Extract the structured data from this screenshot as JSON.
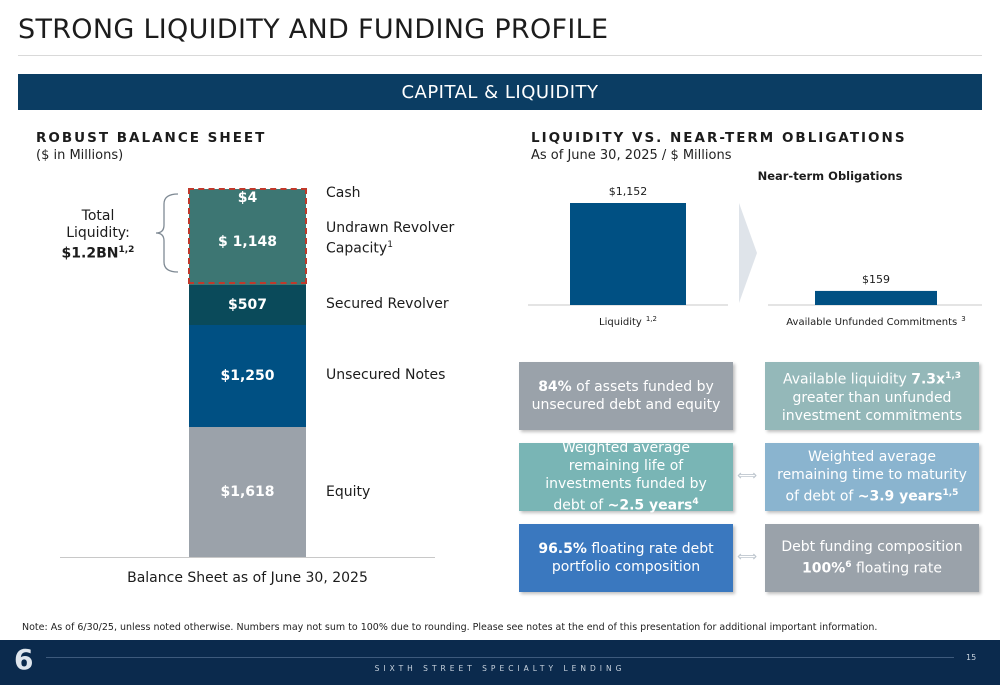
{
  "header": {
    "title": "STRONG LIQUIDITY AND FUNDING PROFILE",
    "banner": "CAPITAL & LIQUIDITY"
  },
  "left": {
    "title": "ROBUST BALANCE SHEET",
    "subtitle": "($ in Millions)",
    "total_line1": "Total",
    "total_line2": "Liquidity:",
    "total_value": "$1.2BN",
    "total_sup": "1,2",
    "caption": "Balance Sheet as of June 30, 2025"
  },
  "right": {
    "title": "LIQUIDITY VS. NEAR-TERM OBLIGATIONS",
    "subtitle": "As of June 30, 2025 / $ Millions"
  },
  "chart_data": [
    {
      "type": "bar",
      "stacked": true,
      "title": "ROBUST BALANCE SHEET",
      "subtitle": "($ in Millions)",
      "xlabel": "Balance Sheet as of June 30, 2025",
      "series": [
        {
          "name": "Equity",
          "value": 1618,
          "label": "$1,618",
          "color": "#9ba2aa"
        },
        {
          "name": "Unsecured Notes",
          "value": 1250,
          "label": "$1,250",
          "color": "#005083"
        },
        {
          "name": "Secured Revolver",
          "value": 507,
          "label": "$507",
          "color": "#0a4a5a"
        },
        {
          "name": "Undrawn Revolver Capacity",
          "sup": "1",
          "value": 1148,
          "label": "$ 1,148",
          "color": "#3d7673"
        },
        {
          "name": "Cash",
          "value": 4,
          "label": "$4",
          "color": "#3d7673"
        }
      ]
    },
    {
      "type": "bar",
      "title": "LIQUIDITY VS. NEAR-TERM OBLIGATIONS",
      "subtitle": "As of June 30, 2025 / $ Millions",
      "annotation": "Near-term Obligations",
      "categories": [
        "Liquidity",
        "Available Unfunded Commitments"
      ],
      "category_sups": [
        "1,2",
        "3"
      ],
      "values": [
        1152,
        159
      ],
      "labels": [
        "$1,152",
        "$159"
      ],
      "ylim": [
        0,
        1152
      ],
      "color": "#005083"
    }
  ],
  "cards": {
    "c1": {
      "bold": "84%",
      "text": " of assets funded by unsecured debt and equity",
      "color": "#9aa2aa"
    },
    "c2": {
      "pre": "Available liquidity ",
      "bold": "7.3x",
      "sup": "1,3",
      "post": " greater than unfunded investment commitments",
      "color": "#94b8b9"
    },
    "c3": {
      "pre": "Weighted average remaining life of investments funded by debt of ",
      "bold": "~2.5 years",
      "sup": "4",
      "color": "#79b5b5"
    },
    "c4": {
      "pre": "Weighted average remaining time to maturity of debt of ",
      "bold": "~3.9 years",
      "sup": "1,5",
      "color": "#8ab4cf"
    },
    "c5": {
      "bold": "96.5%",
      "text": " floating rate debt portfolio composition",
      "color": "#3a78bf"
    },
    "c6": {
      "pre": "Debt funding composition ",
      "bold": "100%",
      "sup": "6",
      "post": " floating rate",
      "color": "#9aa2aa"
    }
  },
  "note": "Note: As of 6/30/25, unless noted otherwise. Numbers may not sum to 100% due to rounding. Please see notes at the end of this presentation for additional important information.",
  "footer": {
    "logo": "6",
    "company": "SIXTH STREET SPECIALTY LENDING",
    "page": "15"
  }
}
